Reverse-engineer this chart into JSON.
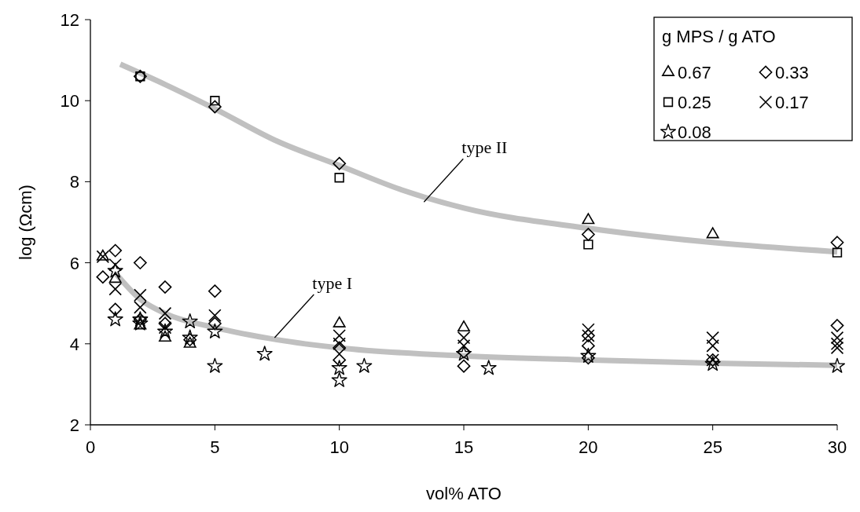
{
  "chart_data": {
    "type": "scatter",
    "xlabel": "vol% ATO",
    "ylabel": "log (Ωcm)",
    "legend_title": "g MPS / g ATO",
    "legend": "top right",
    "grid": false,
    "xlim": [
      0,
      30
    ],
    "xticks": [
      0,
      5,
      10,
      15,
      20,
      25,
      30
    ],
    "ylim": [
      2,
      12
    ],
    "yticks": [
      2,
      4,
      6,
      8,
      10,
      12
    ],
    "annotations": [
      {
        "text": "type II",
        "x": 13.4,
        "y": 7.5
      },
      {
        "text": "type I",
        "x": 7.4,
        "y": 4.15
      }
    ],
    "series": [
      {
        "type": "line",
        "color": "#c0c0c0",
        "marker": "none",
        "x": [
          1.2,
          3,
          5,
          7.5,
          10,
          12.5,
          15,
          20,
          25,
          30
        ],
        "values": [
          10.9,
          10.4,
          9.8,
          9.0,
          8.4,
          7.8,
          7.35,
          6.85,
          6.5,
          6.27
        ]
      },
      {
        "type": "line",
        "color": "#c0c0c0",
        "marker": "none",
        "x": [
          1,
          2,
          3,
          5,
          7.5,
          10,
          15,
          20,
          25,
          30
        ],
        "values": [
          5.75,
          5.1,
          4.75,
          4.4,
          4.1,
          3.9,
          3.7,
          3.6,
          3.52,
          3.47
        ]
      },
      {
        "name": "0.67",
        "color": "#000000",
        "marker": "triangle",
        "x": [
          25,
          0.5,
          1,
          2,
          3,
          4,
          10,
          15,
          20
        ],
        "values": [
          6.7,
          6.15,
          5.6,
          4.45,
          4.15,
          4.0,
          4.5,
          4.4,
          7.05
        ]
      },
      {
        "name": "0.33",
        "color": "#000000",
        "marker": "diamond",
        "x": [
          0.5,
          1,
          1,
          2,
          2,
          3,
          3,
          4,
          5,
          5,
          10,
          10,
          15,
          15,
          20,
          20,
          20,
          25,
          30,
          2,
          5,
          10,
          20,
          30
        ],
        "values": [
          5.65,
          6.3,
          4.85,
          6.0,
          4.6,
          5.4,
          4.5,
          4.1,
          5.3,
          4.5,
          3.9,
          3.6,
          3.45,
          3.8,
          4.2,
          3.95,
          3.65,
          3.6,
          4.45,
          10.6,
          9.85,
          8.45,
          6.7,
          6.5
        ]
      },
      {
        "name": "0.25",
        "color": "#000000",
        "marker": "square",
        "x": [
          2,
          5,
          10,
          20,
          30
        ],
        "values": [
          10.6,
          10.0,
          8.1,
          6.45,
          6.25
        ]
      },
      {
        "name": "0.17",
        "color": "#000000",
        "marker": "cross",
        "x": [
          25,
          0.5,
          1,
          1,
          2,
          2,
          3,
          3,
          5,
          10,
          10,
          15,
          15,
          20,
          20,
          25,
          25,
          30,
          30,
          30
        ],
        "values": [
          4.15,
          6.15,
          5.95,
          5.35,
          5.2,
          4.9,
          4.75,
          4.4,
          4.7,
          4.2,
          4.0,
          4.15,
          3.95,
          4.35,
          4.2,
          3.95,
          3.6,
          4.15,
          4.0,
          3.9
        ]
      },
      {
        "name": "0.08",
        "color": "#000000",
        "marker": "star",
        "x": [
          7,
          1,
          1,
          2,
          2,
          3,
          4,
          4,
          5,
          5,
          10,
          10,
          11,
          15,
          16,
          20,
          25,
          30
        ],
        "values": [
          3.75,
          5.8,
          4.6,
          4.5,
          4.6,
          4.3,
          4.55,
          4.15,
          4.3,
          3.45,
          3.4,
          3.1,
          3.45,
          3.75,
          3.4,
          3.7,
          3.5,
          3.45
        ]
      }
    ]
  }
}
